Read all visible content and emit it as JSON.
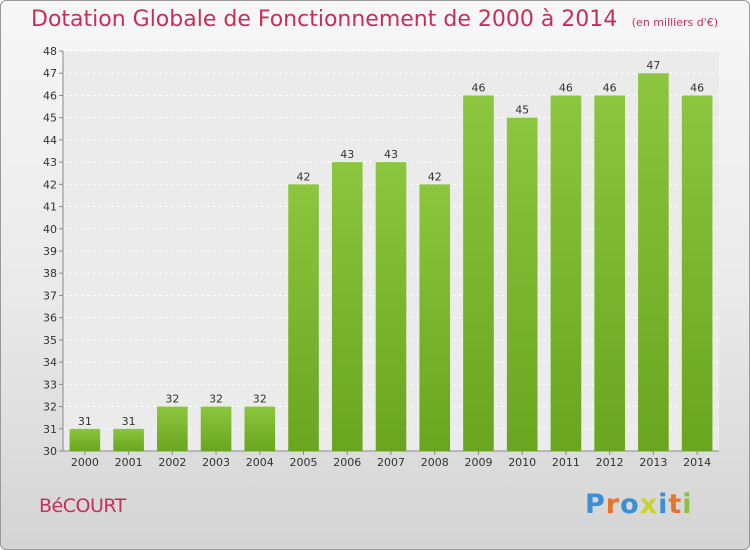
{
  "header": {
    "title": "Dotation Globale de Fonctionnement de 2000 à 2014",
    "subtitle": "(en milliers d'€)"
  },
  "footer": {
    "commune": "BéCOURT",
    "logo_text": "Proxiti"
  },
  "colors": {
    "title": "#c4305a",
    "bar": "#8cc63f",
    "bar_dark": "#6aa51f"
  },
  "chart_data": {
    "type": "bar",
    "categories": [
      "2000",
      "2001",
      "2002",
      "2003",
      "2004",
      "2005",
      "2006",
      "2007",
      "2008",
      "2009",
      "2010",
      "2011",
      "2012",
      "2013",
      "2014"
    ],
    "values": [
      31,
      31,
      32,
      32,
      32,
      42,
      43,
      43,
      42,
      46,
      45,
      46,
      46,
      47,
      46
    ],
    "title": "Dotation Globale de Fonctionnement de 2000 à 2014",
    "subtitle": "(en milliers d'€)",
    "ylim": [
      30,
      48
    ],
    "yticks": [
      30,
      31,
      32,
      33,
      34,
      35,
      36,
      37,
      38,
      39,
      40,
      41,
      42,
      43,
      44,
      45,
      46,
      47,
      48
    ],
    "grid": true,
    "data_labels": true
  }
}
